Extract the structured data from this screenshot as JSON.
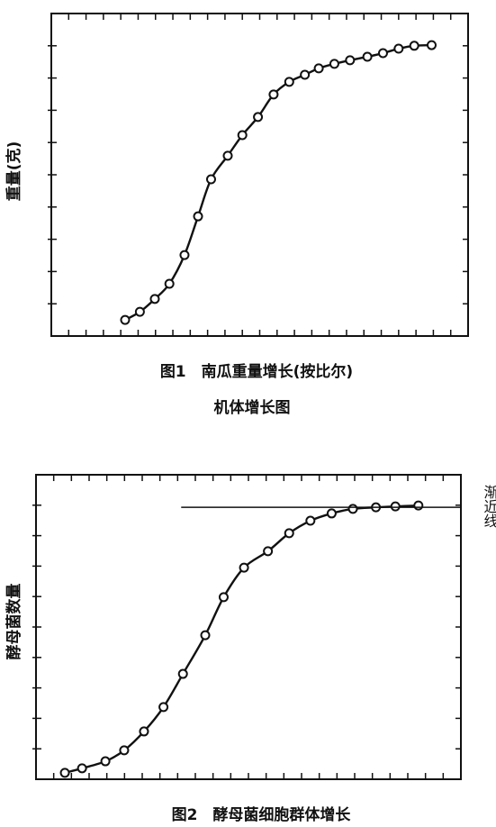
{
  "chart_data": [
    {
      "type": "scatter",
      "y_label": "重量(克)",
      "caption": [
        "图1　南瓜重量增长(按比尔)",
        "机体增长图"
      ],
      "xlim": [
        0,
        24
      ],
      "ylim": [
        0,
        10
      ],
      "x": [
        4.25,
        5.1,
        5.96,
        6.8,
        7.67,
        8.45,
        9.2,
        10.16,
        11.0,
        11.9,
        12.8,
        13.7,
        14.6,
        15.4,
        16.3,
        17.2,
        18.2,
        19.1,
        20.0,
        20.9,
        21.9
      ],
      "values": [
        0.5,
        0.75,
        1.15,
        1.62,
        2.51,
        3.71,
        4.86,
        5.59,
        6.23,
        6.79,
        7.49,
        7.88,
        8.1,
        8.3,
        8.44,
        8.55,
        8.66,
        8.77,
        8.91,
        9.0,
        9.02
      ]
    },
    {
      "type": "scatter",
      "y_label": "酵母菌数量",
      "caption": [
        "图2　酵母菌细胞群体增长"
      ],
      "xlim": [
        0,
        24
      ],
      "ylim": [
        0,
        10
      ],
      "x": [
        1.63,
        2.6,
        3.92,
        4.98,
        6.1,
        7.2,
        8.3,
        9.56,
        10.6,
        11.75,
        13.1,
        14.3,
        15.5,
        16.7,
        17.9,
        19.2,
        20.3,
        21.6
      ],
      "values": [
        0.21,
        0.36,
        0.59,
        0.95,
        1.57,
        2.37,
        3.46,
        4.73,
        5.98,
        6.95,
        7.49,
        8.08,
        8.49,
        8.73,
        8.88,
        8.93,
        8.96,
        8.99
      ],
      "asymptote": {
        "label": "渐近线",
        "value": 8.93,
        "x_start": 8.2
      }
    }
  ]
}
